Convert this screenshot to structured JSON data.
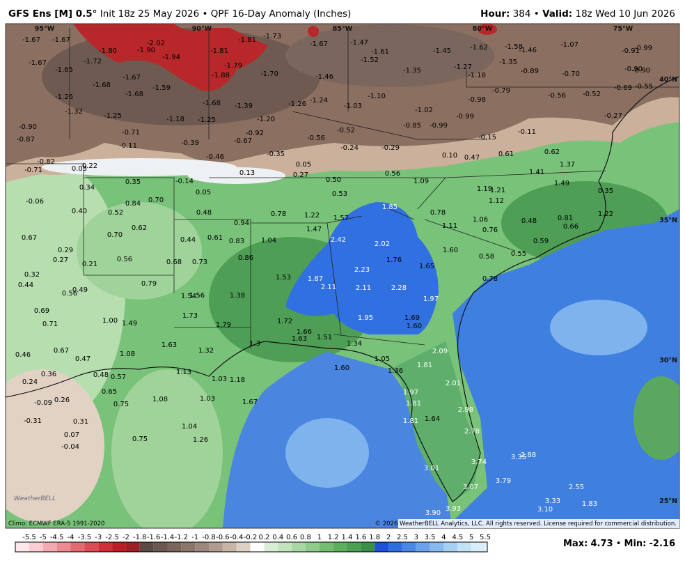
{
  "header": {
    "model": "GFS Ens [M] 0.5°",
    "description": "Init 18z 25 May 2026 • QPF 16-Day Anomaly (Inches)",
    "hour_label": "Hour:",
    "hour": "384",
    "separator": "•",
    "valid_label": "Valid:",
    "valid": "18z Wed 10 Jun 2026"
  },
  "lon_labels": [
    "95°W",
    "90°W",
    "85°W",
    "80°W",
    "75°W"
  ],
  "lat_labels": [
    "40°N",
    "35°N",
    "30°N",
    "25°N"
  ],
  "map_labels": [
    "-1.67",
    "-1.67",
    "-1.80",
    "-1.90",
    "-2.02",
    "-1.94",
    "-1.81",
    "-1.81",
    "-1.73",
    "-1.67",
    "-1.47",
    "-1.61",
    "-1.52",
    "-1.45",
    "-1.62",
    "-1.58",
    "-1.46",
    "-1.07",
    "-0.91",
    "-0.99",
    "-1.67",
    "-1.65",
    "-1.72",
    "-1.79",
    "-1.88",
    "-1.70",
    "-1.35",
    "-1.27",
    "-1.35",
    "-0.89",
    "-0.70",
    "-0.90",
    "-0.90",
    "-1.18",
    "-1.68",
    "-1.67",
    "-1.68",
    "-1.59",
    "-1.46",
    "-0.69",
    "-0.55",
    "-1.26",
    "-1.10",
    "-0.79",
    "-0.98",
    "-0.56",
    "-0.52",
    "-1.68",
    "-1.39",
    "-1.26",
    "-1.24",
    "-1.03",
    "-1.02",
    "-1.32",
    "-1.25",
    "-1.18",
    "-1.25",
    "-1.20",
    "-0.85",
    "-0.99",
    "-0.99",
    "-0.27",
    "-0.90",
    "-0.71",
    "-0.92",
    "-0.67",
    "-0.56",
    "-0.52",
    "-0.15",
    "-0.11",
    "-0.87",
    "-0.11",
    "-0.39",
    "-0.24",
    "-0.29",
    "-0.35",
    "-0.46",
    "0.10",
    "0.47",
    "0.61",
    "0.62",
    "-0.82",
    "-0.71",
    "0.22",
    "0.03",
    "0.13",
    "0.05",
    "0.27",
    "0.56",
    "1.37",
    "1.41",
    "0.50",
    "1.09",
    "1.49",
    "0.34",
    "0.35",
    "-0.14",
    "0.05",
    "0.53",
    "1.19",
    "1.21",
    "0.35",
    "-0.06",
    "0.84",
    "0.70",
    "1.12",
    "0.40",
    "0.52",
    "0.48",
    "0.78",
    "1.22",
    "1.57",
    "1.85",
    "0.78",
    "1.22",
    "1.06",
    "0.48",
    "0.81",
    "0.66",
    "0.62",
    "0.94",
    "1.47",
    "1.11",
    "0.76",
    "0.67",
    "0.70",
    "0.44",
    "0.61",
    "0.83",
    "1.04",
    "2.42",
    "2.02",
    "1.60",
    "0.59",
    "0.29",
    "0.27",
    "0.56",
    "0.68",
    "0.73",
    "0.86",
    "1.76",
    "1.65",
    "0.58",
    "0.55",
    "0.21",
    "2.23",
    "0.32",
    "0.44",
    "0.79",
    "1.53",
    "1.87",
    "2.11",
    "2.11",
    "2.28",
    "0.78",
    "0.49",
    "0.56",
    "1.54",
    "1.56",
    "1.38",
    "1.97",
    "0.69",
    "1.73",
    "1.95",
    "1.69",
    "1.60",
    "0.71",
    "1.00",
    "1.49",
    "1.79",
    "1.72",
    "1.66",
    "1.63",
    "1.51",
    "1.34",
    "1.63",
    "1.32",
    "1.3",
    "0.67",
    "2.09",
    "0.46",
    "0.47",
    "1.08",
    "1.05",
    "1.81",
    "1.13",
    "1.60",
    "1.36",
    "1.03",
    "1.18",
    "0.48",
    "0.57",
    "0.36",
    "0.24",
    "2.01",
    "0.65",
    "1.97",
    "1.81",
    "1.67",
    "1.08",
    "1.03",
    "0.75",
    "-0.09",
    "0.26",
    "2.98",
    "-0.31",
    "0.31",
    "1.04",
    "1.81",
    "1.64",
    "2.78",
    "0.07",
    "1.26",
    "0.75",
    "-0.04",
    "3.74",
    "2.88",
    "3.35",
    "3.01",
    "3.79",
    "3.07",
    "2.55",
    "3.33",
    "1.83",
    "3.10",
    "3.93",
    "3.90"
  ],
  "legend": {
    "labels": [
      "-5.5",
      "-5",
      "-4.5",
      "-4",
      "-3.5",
      "-3",
      "-2.5",
      "-2",
      "-1.8",
      "-1.6",
      "-1.4",
      "-1.2",
      "-1",
      "-0.8",
      "-0.6",
      "-0.4",
      "-0.2",
      "0.2",
      "0.4",
      "0.6",
      "0.8",
      "1",
      "1.2",
      "1.4",
      "1.6",
      "1.8",
      "2",
      "2.5",
      "3",
      "3.5",
      "4",
      "4.5",
      "5",
      "5.5"
    ]
  },
  "footer": {
    "climo": "Climo: ECMWF ERA-5 1991-2020",
    "copyright": "© 2026 WeatherBELL Analytics, LLC. All rights reserved. License required for commercial distribution.",
    "logo": "WeatherBELL",
    "max_label": "Max:",
    "max": "4.73",
    "separator": "•",
    "min_label": "Min:",
    "min": "-2.16"
  }
}
